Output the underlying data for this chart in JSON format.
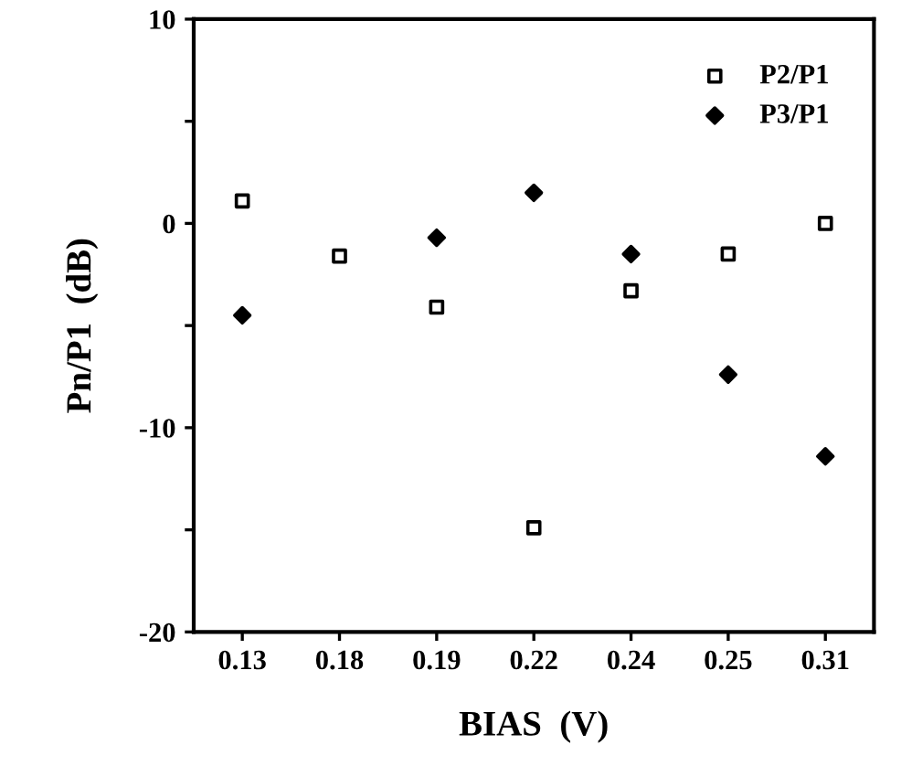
{
  "chart_data": {
    "type": "scatter",
    "xlabel": "BIAS  (V)",
    "ylabel": "Pn/P1  (dB)",
    "categories": [
      "0.13",
      "0.18",
      "0.19",
      "0.22",
      "0.24",
      "0.25",
      "0.31"
    ],
    "series": [
      {
        "name": "P2/P1",
        "color": "#000000",
        "marker": "square",
        "values": [
          1.1,
          -1.6,
          -4.1,
          -14.9,
          -3.3,
          -1.5,
          0.0
        ]
      },
      {
        "name": "P3/P1",
        "color": "#000000",
        "marker": "diamond",
        "values": [
          -4.5,
          null,
          -0.7,
          1.5,
          -1.5,
          -7.4,
          -11.4
        ]
      }
    ],
    "ylim": [
      -20,
      10
    ],
    "yticks": [
      -20,
      {
        "value": -15,
        "label": null
      },
      -10,
      {
        "value": -5,
        "label": null
      },
      0,
      {
        "value": 5,
        "label": null
      },
      10
    ],
    "grid": false,
    "legend": "top right"
  }
}
